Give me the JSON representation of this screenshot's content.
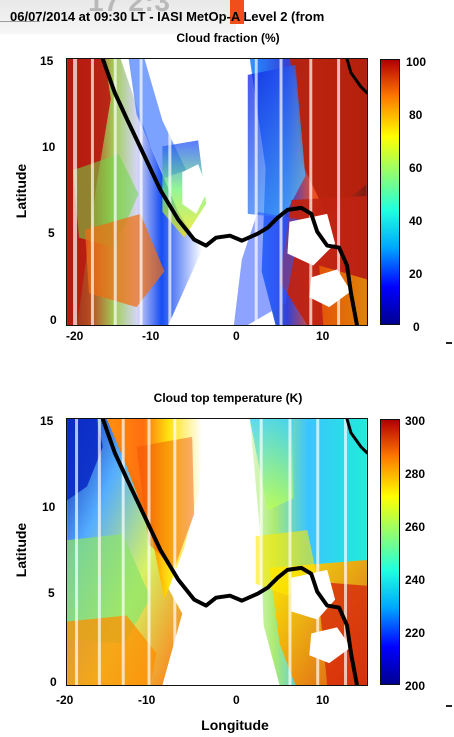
{
  "header": {
    "title": "06/07/2014 at 09:30 LT  - IASI MetOp-A Level 2 (from",
    "cropped_background_text": "17 2:3"
  },
  "chart_data": [
    {
      "type": "heatmap",
      "title": "Cloud fraction (%)",
      "xlabel": "",
      "ylabel": "Latitude",
      "xlim": [
        -21,
        15
      ],
      "ylim": [
        0,
        15
      ],
      "x_ticks": [
        -20,
        -10,
        0,
        10
      ],
      "y_ticks": [
        0,
        5,
        10,
        15
      ],
      "colorbar": {
        "label": "",
        "ticks": [
          0,
          20,
          40,
          60,
          80,
          100
        ],
        "range": [
          0,
          100
        ],
        "colormap": "jet"
      },
      "coastline": true
    },
    {
      "type": "heatmap",
      "title": "Cloud top temperature (K)",
      "xlabel": "Longitude",
      "ylabel": "Latitude",
      "xlim": [
        -21,
        15
      ],
      "ylim": [
        0,
        15
      ],
      "x_ticks": [
        -20,
        -10,
        0,
        10
      ],
      "y_ticks": [
        0,
        5,
        10,
        15
      ],
      "colorbar": {
        "label": "",
        "ticks": [
          200,
          220,
          240,
          260,
          280,
          300
        ],
        "range": [
          200,
          300
        ],
        "colormap": "jet"
      },
      "coastline": true
    }
  ]
}
